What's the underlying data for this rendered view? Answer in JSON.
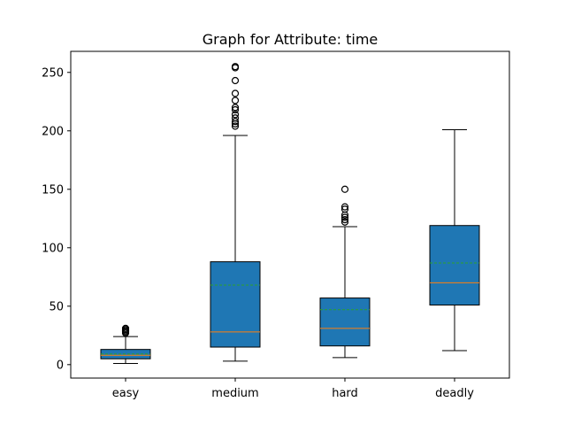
{
  "chart_data": {
    "type": "box",
    "title": "Graph for Attribute: time",
    "xlabel": "",
    "ylabel": "",
    "categories": [
      "easy",
      "medium",
      "hard",
      "deadly"
    ],
    "ylim": [
      -11.5,
      268.0
    ],
    "yticks": [
      0,
      50,
      100,
      150,
      200,
      250
    ],
    "grid": false,
    "colors": {
      "box_fill": "#1f77b4",
      "median": "#ff7f0e",
      "mean": "#2ca02c",
      "line": "#000000"
    },
    "boxes": [
      {
        "name": "easy",
        "whisker_low": 1,
        "q1": 5,
        "median": 8,
        "mean": 9,
        "q3": 13,
        "whisker_high": 24,
        "outliers": [
          27,
          28,
          29,
          30,
          31
        ]
      },
      {
        "name": "medium",
        "whisker_low": 3,
        "q1": 15,
        "median": 28,
        "mean": 68,
        "q3": 88,
        "whisker_high": 196,
        "outliers": [
          204,
          206,
          208,
          211,
          214,
          218,
          220,
          226,
          232,
          243,
          254,
          255
        ]
      },
      {
        "name": "hard",
        "whisker_low": 6,
        "q1": 16,
        "median": 31,
        "mean": 47,
        "q3": 57,
        "whisker_high": 118,
        "outliers": [
          122,
          124,
          126,
          128,
          133,
          135,
          150
        ]
      },
      {
        "name": "deadly",
        "whisker_low": 12,
        "q1": 51,
        "median": 70,
        "mean": 87,
        "q3": 119,
        "whisker_high": 201,
        "outliers": []
      }
    ]
  }
}
